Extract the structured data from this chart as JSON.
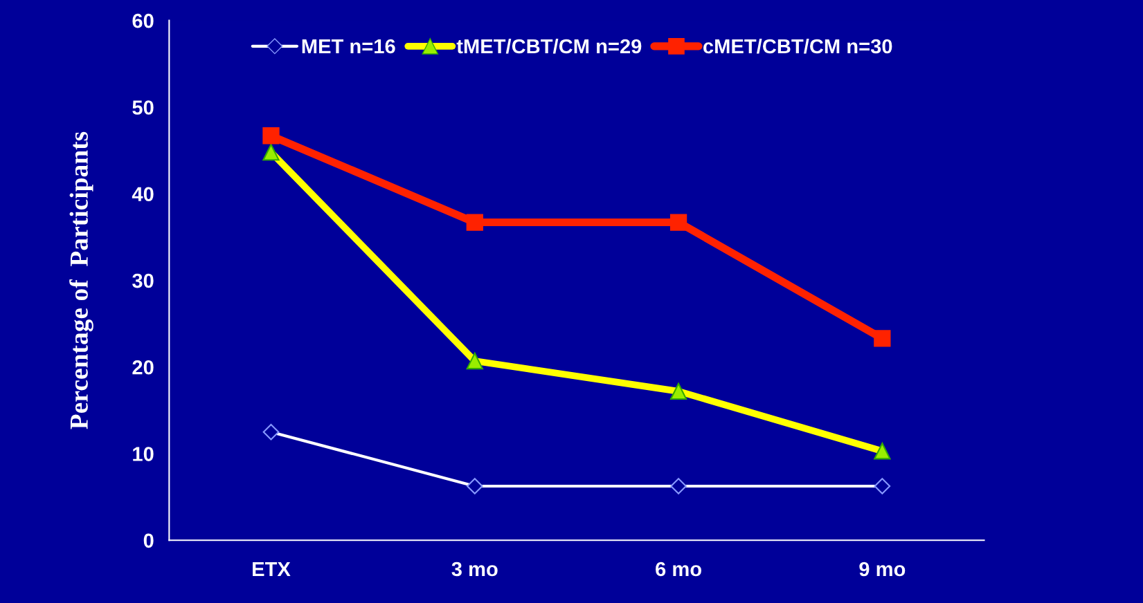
{
  "chart_data": {
    "type": "line",
    "ylabel": "Percentage of  Participants",
    "categories": [
      "ETX",
      "3 mo",
      "6 mo",
      "9 mo"
    ],
    "ylim": [
      0,
      60
    ],
    "yticks": [
      0,
      10,
      20,
      30,
      40,
      50,
      60
    ],
    "grid": false,
    "legend": "top",
    "series": [
      {
        "name": "MET n=16",
        "color": "#ffffff",
        "marker": "diamond",
        "values": [
          12.5,
          6.25,
          6.25,
          6.25
        ]
      },
      {
        "name": "tMET/CBT/CM n=29",
        "color": "#ffff00",
        "marker": "triangle",
        "values": [
          44.8,
          20.7,
          17.2,
          10.3
        ]
      },
      {
        "name": "cMET/CBT/CM n=30",
        "color": "#ff2200",
        "marker": "square",
        "values": [
          46.7,
          36.7,
          36.7,
          23.3
        ]
      }
    ]
  }
}
